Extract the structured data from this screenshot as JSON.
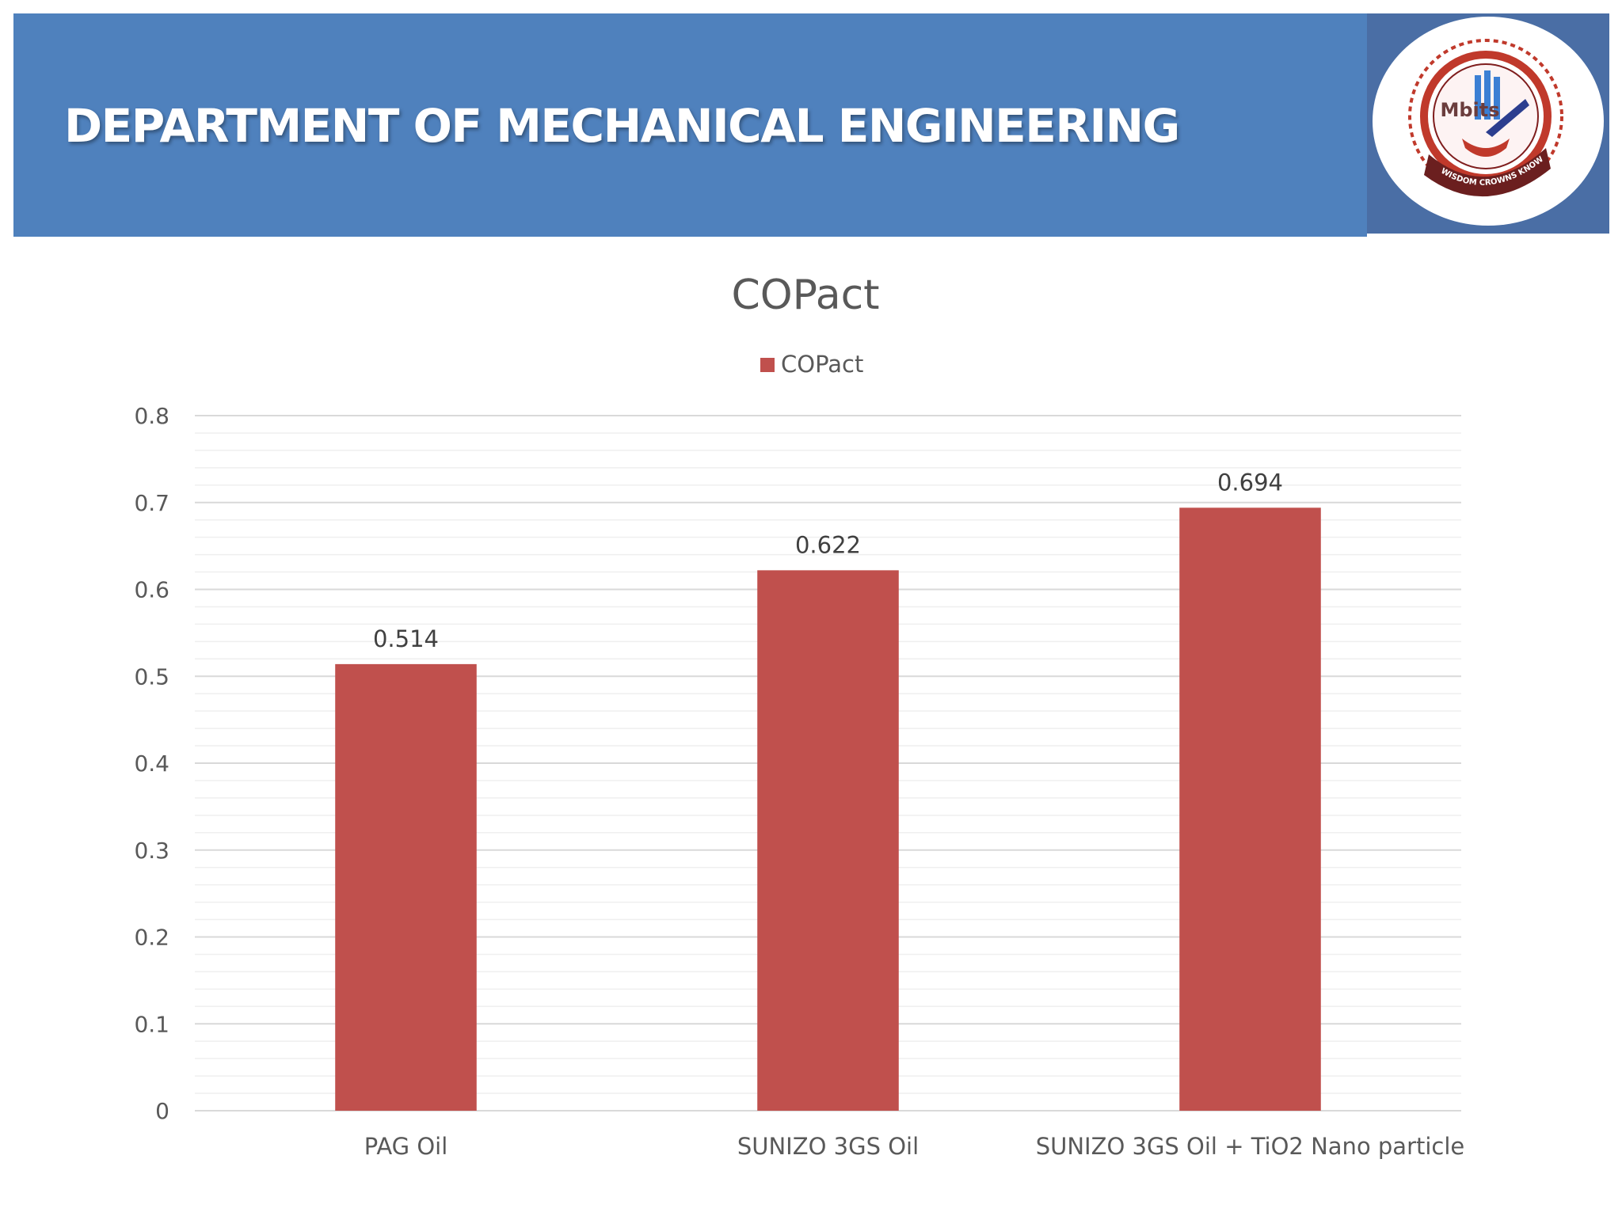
{
  "header": {
    "title": "DEPARTMENT OF MECHANICAL ENGINEERING",
    "logo_text": "Mbits",
    "logo_motto": "WISDOM CROWNS KNOWLEDGE"
  },
  "colors": {
    "banner": "#4f81bd",
    "bar": "#c0504d",
    "grid": "#d9d9d9",
    "text": "#595959"
  },
  "chart_data": {
    "type": "bar",
    "title": "COPact",
    "categories": [
      "PAG Oil",
      "SUNIZO 3GS Oil",
      "SUNIZO 3GS Oil + TiO2 Nano particle"
    ],
    "series": [
      {
        "name": "COPact",
        "values": [
          0.514,
          0.622,
          0.694
        ]
      }
    ],
    "data_labels": [
      "0.514",
      "0.622",
      "0.694"
    ],
    "yticks": [
      "0",
      "0.1",
      "0.2",
      "0.3",
      "0.4",
      "0.5",
      "0.6",
      "0.7",
      "0.8"
    ],
    "ylim": [
      0,
      0.8
    ],
    "ymajor": 0.1,
    "yminor": 0.02,
    "xlabel": "",
    "ylabel": "",
    "legend": "top-center",
    "grid": true
  }
}
